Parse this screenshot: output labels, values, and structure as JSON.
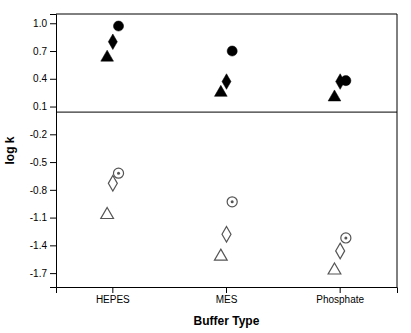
{
  "chart_data": {
    "type": "scatter",
    "xlabel": "Buffer Type",
    "ylabel": "log k",
    "categories": [
      "HEPES",
      "MES",
      "Phosphate"
    ],
    "series": [
      {
        "color": "black",
        "marker": "circle",
        "values": [
          0.97,
          0.7,
          0.38
        ]
      },
      {
        "color": "black",
        "marker": "diamond",
        "values": [
          0.8,
          0.37,
          0.37
        ]
      },
      {
        "color": "black",
        "marker": "triangle-up",
        "values": [
          0.63,
          0.25,
          0.2
        ]
      },
      {
        "color": "#555555",
        "marker": "circle-open-dot",
        "values": [
          -0.62,
          -0.93,
          -1.32
        ]
      },
      {
        "color": "#555555",
        "marker": "diamond-open",
        "values": [
          -0.73,
          -1.28,
          -1.46
        ]
      },
      {
        "color": "#555555",
        "marker": "triangle-up-open",
        "values": [
          -1.07,
          -1.52,
          -1.67
        ]
      }
    ],
    "hline_y": 0.04,
    "ylim": [
      -1.85,
      1.1
    ],
    "yticks": [
      0.1,
      0.4,
      0.7,
      {
        "value": 1.0,
        "label": "1.0"
      },
      -0.2,
      -0.5,
      -0.8,
      -1.1,
      -1.4,
      -1.7
    ],
    "grid": false
  }
}
